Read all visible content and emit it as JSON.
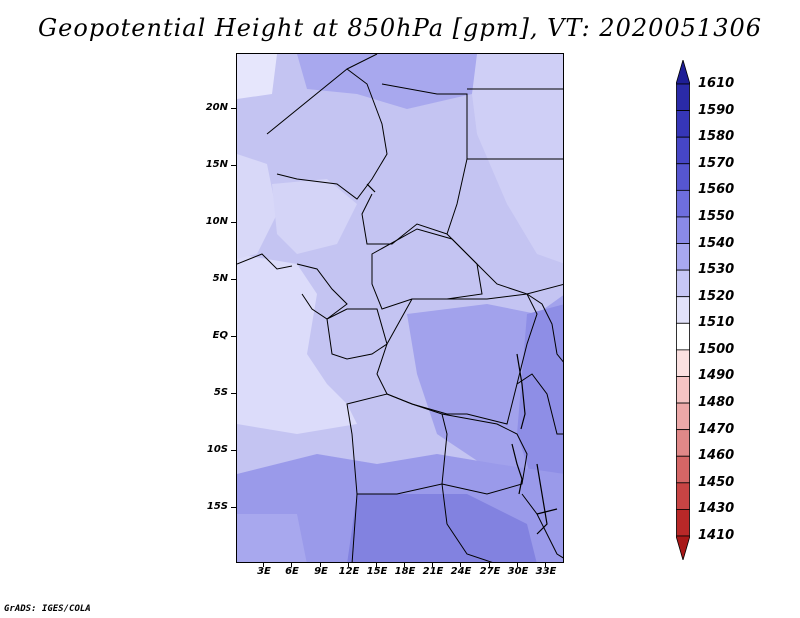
{
  "title": "Geopotential Height at 850hPa [gpm], VT: 2020051306",
  "credit": "GrADS: IGES/COLA",
  "map": {
    "lat_labels": [
      "20N",
      "15N",
      "10N",
      "5N",
      "EQ",
      "5S",
      "10S",
      "15S"
    ],
    "lon_labels": [
      "3E",
      "6E",
      "9E",
      "12E",
      "15E",
      "18E",
      "21E",
      "24E",
      "27E",
      "30E",
      "33E"
    ]
  },
  "colorbar": {
    "levels": [
      "1610",
      "1590",
      "1580",
      "1570",
      "1560",
      "1550",
      "1540",
      "1530",
      "1520",
      "1510",
      "1500",
      "1490",
      "1480",
      "1470",
      "1460",
      "1450",
      "1430",
      "1410"
    ],
    "colors": [
      "#1e1e96",
      "#2a2aa8",
      "#3636b8",
      "#4646c6",
      "#5656d0",
      "#6e6ede",
      "#8a8ae8",
      "#a8a8f0",
      "#c6c6f5",
      "#e2e2fa",
      "#ffffff",
      "#fae0e0",
      "#f4c4c4",
      "#eca8a8",
      "#e08888",
      "#d46666",
      "#c84444",
      "#b82828",
      "#a81818"
    ]
  }
}
